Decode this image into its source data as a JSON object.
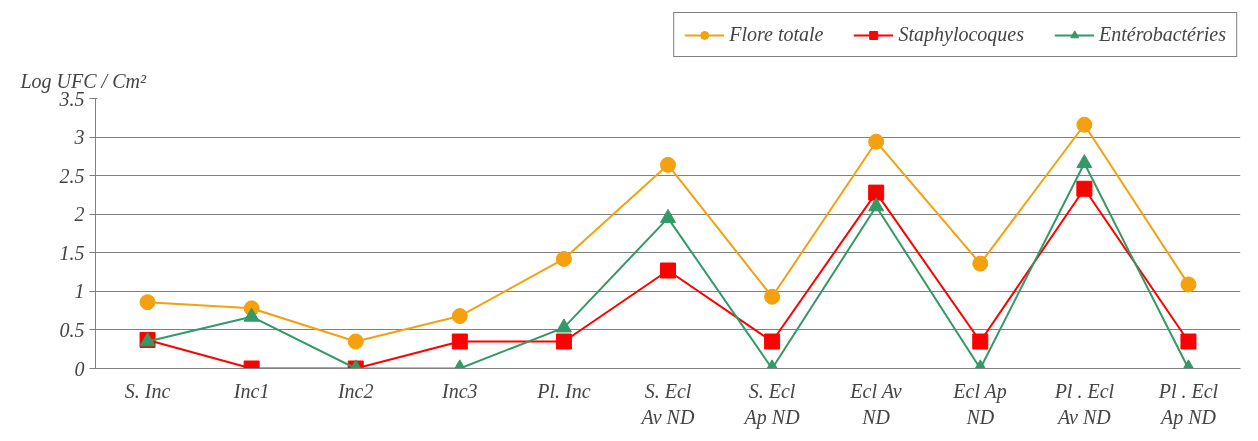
{
  "chart_data": {
    "type": "line",
    "ylabel": "Log UFC / Cm²",
    "categories": [
      "S. Inc",
      "Inc1",
      "Inc2",
      "Inc3",
      "Pl. Inc",
      "S. Ecl\nAv ND",
      "S. Ecl\nAp ND",
      "Ecl Av\nND",
      "Ecl Ap\nND",
      "Pl . Ecl\nAv ND",
      "Pl . Ecl\nAp ND"
    ],
    "series": [
      {
        "name": "Flore totale",
        "color": "#f5a00f",
        "marker": "circle",
        "values": [
          0.86,
          0.78,
          0.35,
          0.68,
          1.42,
          2.64,
          0.93,
          2.94,
          1.36,
          3.16,
          1.09
        ]
      },
      {
        "name": "Staphylocoques",
        "color": "#ff0000",
        "marker": "square",
        "values": [
          0.37,
          0,
          0,
          0.35,
          0.35,
          1.27,
          0.35,
          2.28,
          0.35,
          2.33,
          0.35
        ]
      },
      {
        "name": "Entérobactéries",
        "color": "#339966",
        "marker": "triangle",
        "values": [
          0.35,
          0.67,
          0,
          0,
          0.53,
          1.95,
          0,
          2.1,
          0,
          2.66,
          0
        ]
      }
    ],
    "ylim": [
      0,
      3.5
    ],
    "yticks": [
      0,
      0.5,
      1,
      1.5,
      2,
      2.5,
      3,
      3.5
    ],
    "grid": "y",
    "legend": "top right"
  }
}
